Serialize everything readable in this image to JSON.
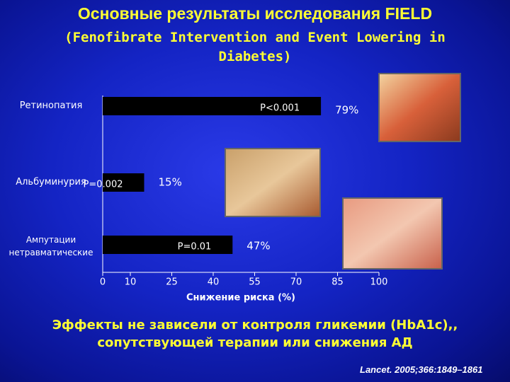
{
  "chart_data": {
    "type": "hbar",
    "title": "Основные результаты исследования FIELD",
    "subtitle": "(Fenofibrate Intervention and Event Lowering in Diabetes)",
    "categories": [
      "Ретинопатия",
      "Альбуминурия",
      "Ампутации нетравматические"
    ],
    "values": [
      79,
      15,
      47
    ],
    "value_labels": [
      "79%",
      "15%",
      "47%"
    ],
    "annotations": [
      "P<0.001",
      "P=0.002",
      "P=0.01"
    ],
    "color": "#000000",
    "xlim": [
      0,
      100
    ],
    "xticks": [
      0,
      10,
      25,
      40,
      55,
      70,
      85,
      100
    ],
    "xlabel": "Снижение риска (%)",
    "footnote": "Эффекты не зависели от контроля гликемии (HbA1c),, сопутствующей терапии или снижения АД",
    "source": "Lancet. 2005;366:1849–1861"
  }
}
